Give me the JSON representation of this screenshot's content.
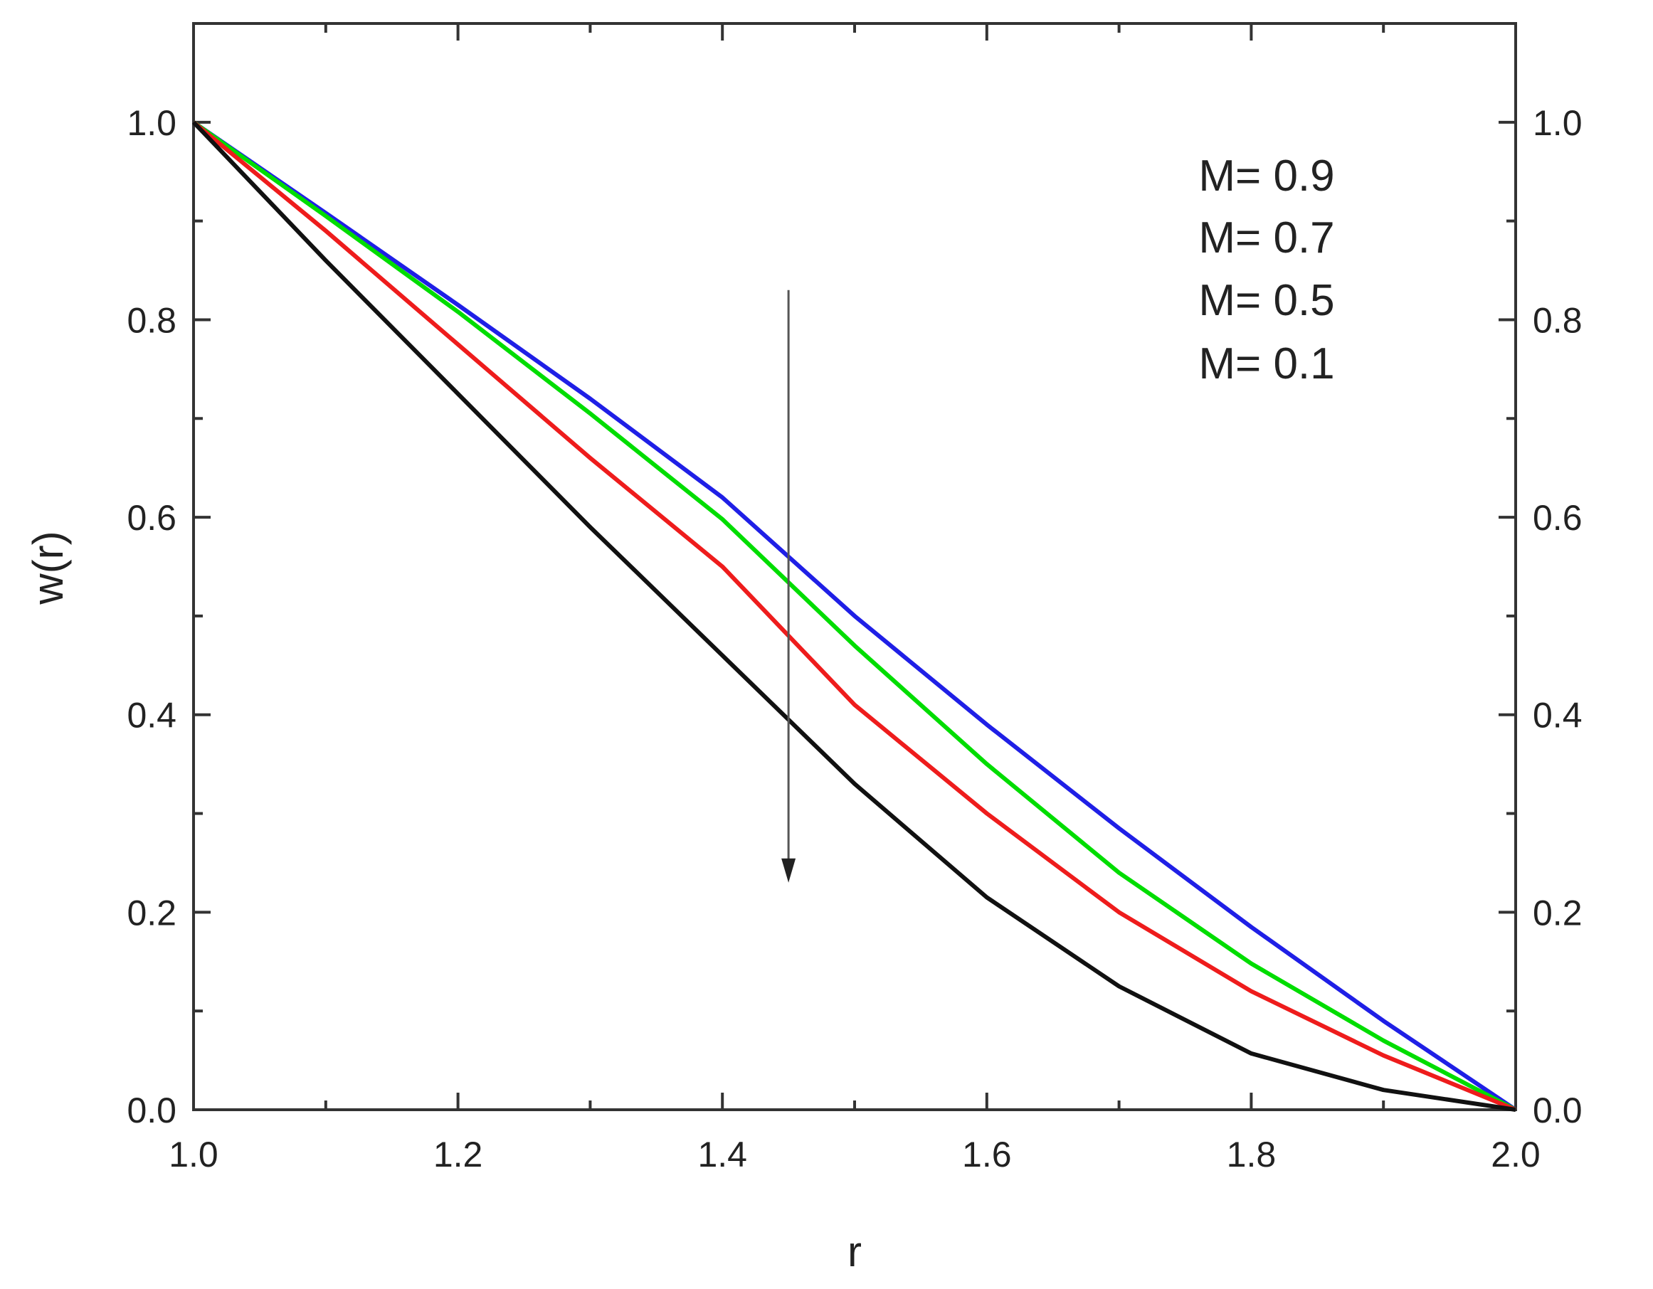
{
  "chart_data": {
    "type": "line",
    "title": "",
    "xlabel": "r",
    "ylabel": "w(r)",
    "xlim": [
      1.0,
      2.0
    ],
    "ylim": [
      0.0,
      1.1
    ],
    "x_ticks": [
      "1.0",
      "1.2",
      "1.4",
      "1.6",
      "1.8",
      "2.0"
    ],
    "y_ticks": [
      "0.0",
      "0.2",
      "0.4",
      "0.6",
      "0.8",
      "1.0"
    ],
    "grid": false,
    "legend": {
      "placement": "top-right",
      "entries": [
        "M= 0.9",
        "M= 0.7",
        "M= 0.5",
        "M= 0.1"
      ]
    },
    "annotation": {
      "type": "arrow",
      "x": 1.45,
      "y_start": 0.83,
      "y_end": 0.23,
      "meaning": "decreasing w(r) with series order"
    },
    "series": [
      {
        "color": "#1f1fe6",
        "x": [
          1.0,
          1.1,
          1.2,
          1.3,
          1.4,
          1.5,
          1.6,
          1.7,
          1.8,
          1.9,
          2.0
        ],
        "y": [
          1.0,
          0.908,
          0.815,
          0.72,
          0.62,
          0.5,
          0.39,
          0.285,
          0.185,
          0.09,
          0.0
        ]
      },
      {
        "color": "#00dd00",
        "x": [
          1.0,
          1.1,
          1.2,
          1.3,
          1.4,
          1.5,
          1.6,
          1.7,
          1.8,
          1.9,
          2.0
        ],
        "y": [
          1.0,
          0.905,
          0.808,
          0.705,
          0.598,
          0.47,
          0.35,
          0.24,
          0.148,
          0.07,
          0.0
        ]
      },
      {
        "color": "#ee1c1c",
        "x": [
          1.0,
          1.1,
          1.2,
          1.3,
          1.4,
          1.5,
          1.6,
          1.7,
          1.8,
          1.9,
          2.0
        ],
        "y": [
          1.0,
          0.89,
          0.775,
          0.66,
          0.55,
          0.41,
          0.3,
          0.2,
          0.12,
          0.055,
          0.0
        ]
      },
      {
        "color": "#111111",
        "x": [
          1.0,
          1.1,
          1.2,
          1.3,
          1.4,
          1.5,
          1.6,
          1.7,
          1.8,
          1.9,
          2.0
        ],
        "y": [
          1.0,
          0.86,
          0.725,
          0.59,
          0.46,
          0.33,
          0.215,
          0.125,
          0.057,
          0.02,
          0.0
        ]
      }
    ]
  }
}
